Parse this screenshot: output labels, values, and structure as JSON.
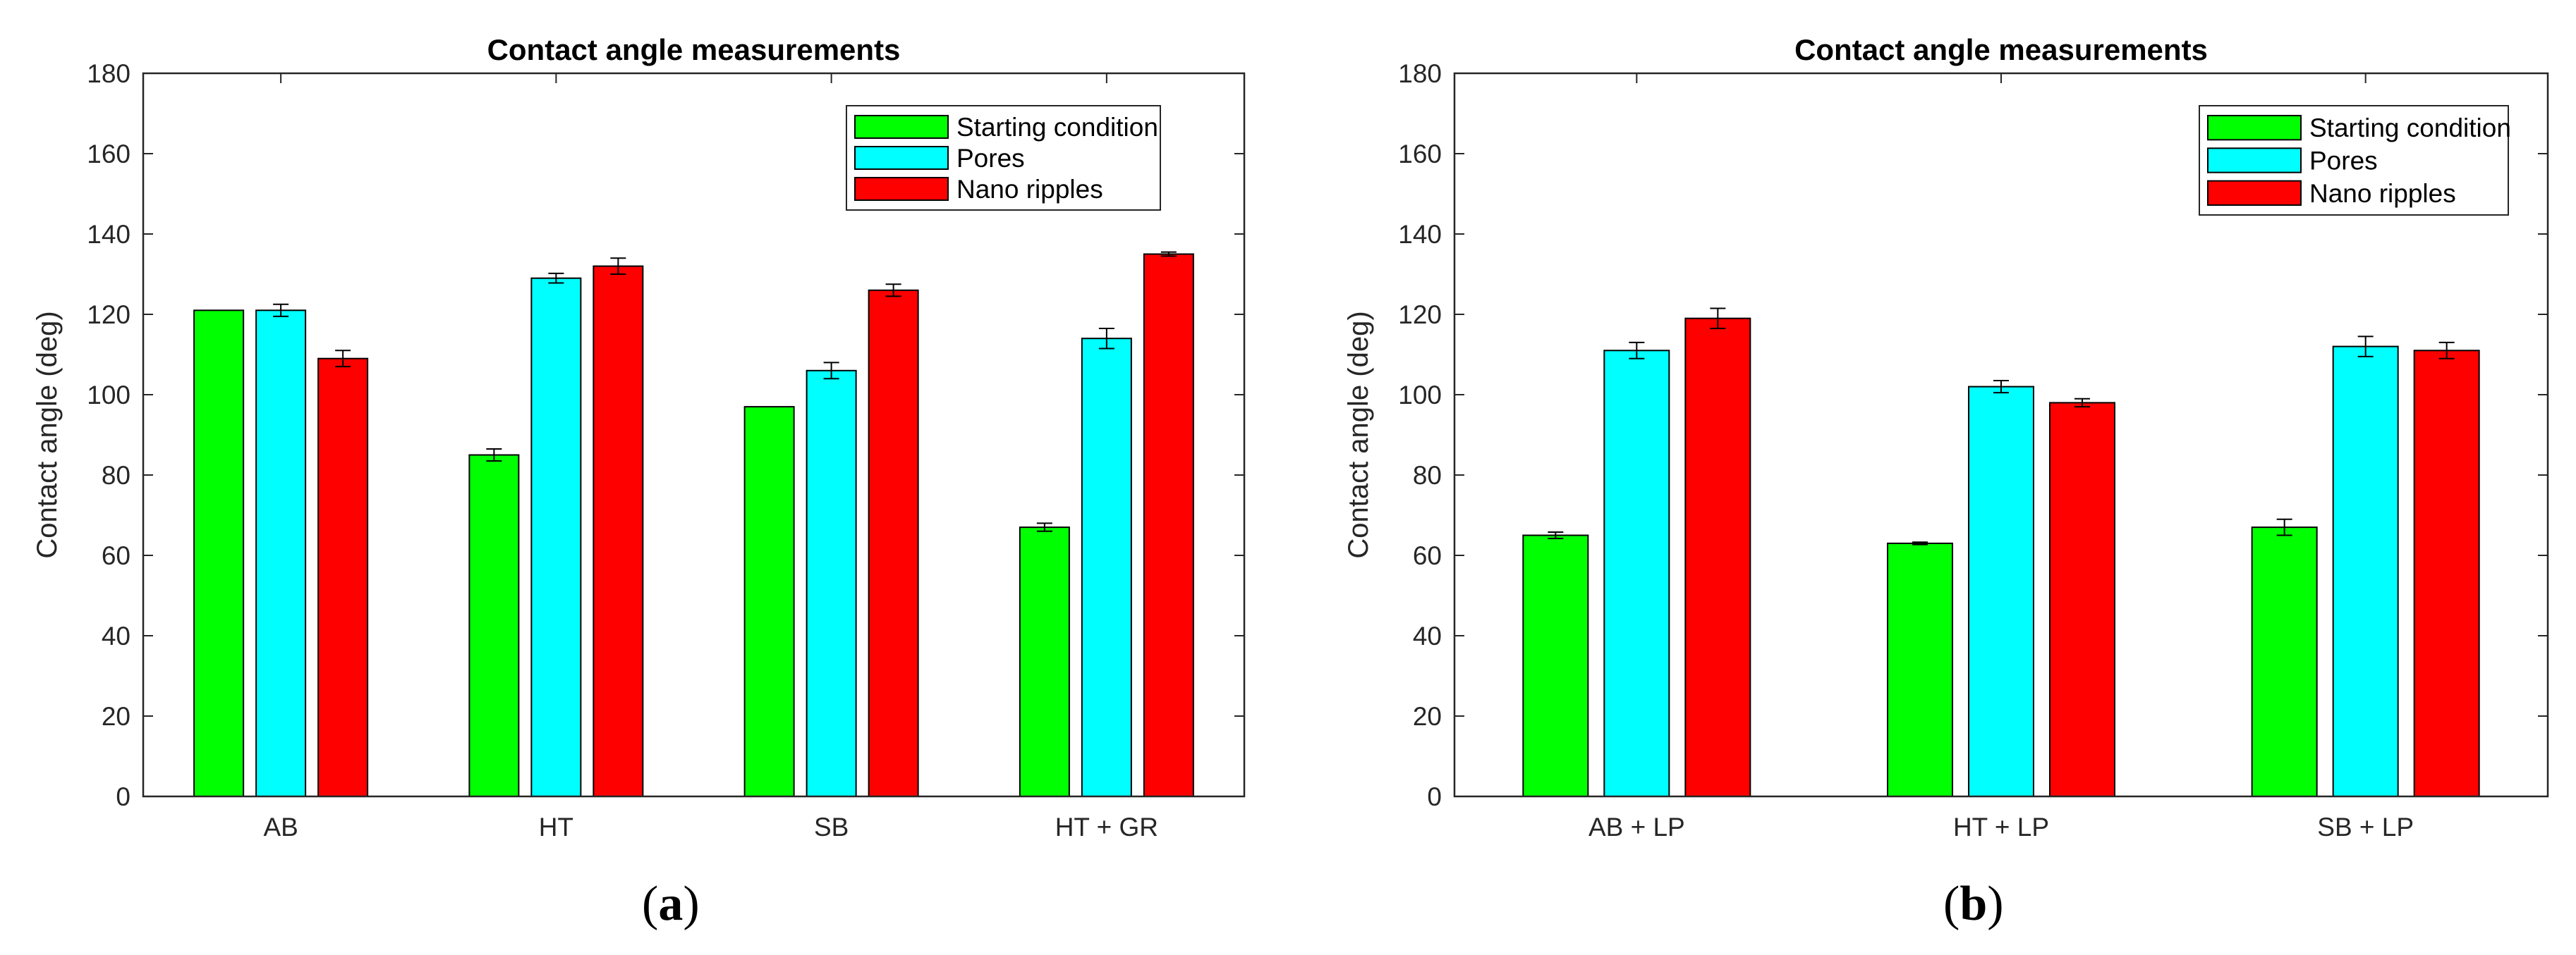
{
  "colors": {
    "starting": "#00ff00",
    "pores": "#00ffff",
    "ripples": "#ff0000",
    "axis": "#262626"
  },
  "chart_data": [
    {
      "type": "bar",
      "panel": "a",
      "title": "Contact angle measurements",
      "xlabel": "",
      "ylabel": "Contact angle (deg)",
      "ylim": [
        0,
        180
      ],
      "yticks": [
        0,
        20,
        40,
        60,
        80,
        100,
        120,
        140,
        160,
        180
      ],
      "categories": [
        "AB",
        "HT",
        "SB",
        "HT + GR"
      ],
      "legend_position": "top-right",
      "series": [
        {
          "name": "Starting condition",
          "color_key": "starting",
          "values": [
            121,
            85,
            97,
            67
          ],
          "errors": [
            0,
            1.5,
            0,
            1
          ]
        },
        {
          "name": "Pores",
          "color_key": "pores",
          "values": [
            121,
            129,
            106,
            114
          ],
          "errors": [
            1.5,
            1.2,
            2,
            2.5
          ]
        },
        {
          "name": "Nano ripples",
          "color_key": "ripples",
          "values": [
            109,
            132,
            126,
            135
          ],
          "errors": [
            2,
            2,
            1.5,
            0.5
          ]
        }
      ],
      "caption_open": "(",
      "caption_letter": "a",
      "caption_close": ")"
    },
    {
      "type": "bar",
      "panel": "b",
      "title": "Contact angle measurements",
      "xlabel": "",
      "ylabel": "Contact angle (deg)",
      "ylim": [
        0,
        180
      ],
      "yticks": [
        0,
        20,
        40,
        60,
        80,
        100,
        120,
        140,
        160,
        180
      ],
      "categories": [
        "AB + LP",
        "HT + LP",
        "SB + LP"
      ],
      "legend_position": "top-right",
      "series": [
        {
          "name": "Starting condition",
          "color_key": "starting",
          "values": [
            65,
            63,
            67
          ],
          "errors": [
            0.8,
            0.3,
            2
          ]
        },
        {
          "name": "Pores",
          "color_key": "pores",
          "values": [
            111,
            102,
            112
          ],
          "errors": [
            2,
            1.5,
            2.5
          ]
        },
        {
          "name": "Nano ripples",
          "color_key": "ripples",
          "values": [
            119,
            98,
            111
          ],
          "errors": [
            2.5,
            1,
            2
          ]
        }
      ],
      "caption_open": "(",
      "caption_letter": "b",
      "caption_close": ")"
    }
  ]
}
